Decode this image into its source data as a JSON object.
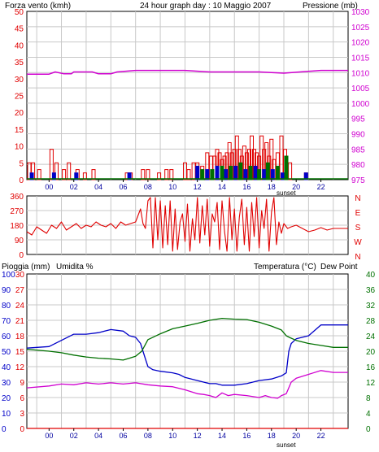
{
  "header": {
    "left_label": "Forza vento (kmh)",
    "title": "24 hour graph day : 10 Maggio 2007",
    "right_label": "Pressione (mb)"
  },
  "colors": {
    "red": "#e00000",
    "blue": "#0000c8",
    "green": "#007000",
    "magenta": "#d000d0",
    "gust_red": "#e00000",
    "grid": "#c8c8c8",
    "border": "#000000"
  },
  "time_ticks": [
    "00",
    "02",
    "04",
    "06",
    "08",
    "10",
    "12",
    "14",
    "16",
    "18",
    "20",
    "22"
  ],
  "sunset_label": "sunset",
  "chart_data": [
    {
      "type": "bar",
      "panel": "wind",
      "x_unit": "hours",
      "xlim": [
        -1.8,
        24.2
      ],
      "ylim_left": [
        0,
        50
      ],
      "ylim_right": [
        975,
        1030
      ],
      "y_ticks_left": [
        0,
        5,
        10,
        15,
        20,
        25,
        30,
        35,
        40,
        45,
        50
      ],
      "y_ticks_right": [
        975,
        980,
        985,
        990,
        995,
        1000,
        1005,
        1010,
        1015,
        1020,
        1025,
        1030
      ],
      "series": [
        {
          "name": "Forza vento (kmh)",
          "role": "gust",
          "x": [
            -1.6,
            -1.3,
            -0.8,
            0.2,
            0.6,
            1.2,
            1.6,
            2.3,
            2.9,
            3.6,
            6.3,
            6.6,
            7.6,
            8.0,
            8.9,
            9.5,
            9.9,
            11.0,
            11.3,
            11.7,
            12.0,
            12.4,
            12.8,
            13.1,
            13.4,
            13.6,
            13.8,
            14.0,
            14.2,
            14.4,
            14.6,
            14.8,
            15.0,
            15.2,
            15.4,
            15.6,
            15.8,
            16.0,
            16.2,
            16.4,
            16.6,
            16.8,
            17.0,
            17.2,
            17.4,
            17.6,
            17.8,
            18.0,
            18.2,
            18.5,
            18.8,
            19.1,
            19.5,
            20.8
          ],
          "values": [
            5,
            5,
            3,
            9,
            5,
            3,
            5,
            3,
            2,
            3,
            2,
            2,
            3,
            3,
            2,
            3,
            3,
            5,
            3,
            5,
            5,
            4,
            8,
            7,
            7,
            9,
            8,
            6,
            7,
            8,
            11,
            8,
            9,
            13,
            9,
            7,
            10,
            8,
            9,
            13,
            9,
            8,
            7,
            13,
            9,
            11,
            7,
            12,
            6,
            8,
            13,
            9,
            5,
            2
          ]
        },
        {
          "name": "mean-blue",
          "role": "mean",
          "x": [
            -1.4,
            0.4,
            2.2,
            6.5,
            12.0,
            12.8,
            13.6,
            14.3,
            15.1,
            15.9,
            16.7,
            17.4,
            18.1,
            18.9,
            20.8
          ],
          "values": [
            2,
            2,
            2,
            2,
            4,
            3,
            4,
            3,
            4,
            3,
            4,
            3,
            3,
            2,
            2
          ]
        },
        {
          "name": "mean-green",
          "role": "mean",
          "x": [
            12.4,
            13.2,
            14.0,
            14.7,
            15.5,
            16.3,
            17.0,
            17.7,
            18.5,
            19.2
          ],
          "values": [
            3,
            3,
            4,
            4,
            5,
            4,
            3,
            5,
            4,
            7
          ]
        },
        {
          "name": "Pressione (mb)",
          "role": "pressure",
          "x": [
            -1.8,
            0.0,
            0.5,
            1.2,
            1.8,
            2.0,
            3.5,
            4.0,
            5.0,
            5.5,
            7.0,
            11.0,
            13.0,
            17.0,
            19.0,
            22.0,
            24.2
          ],
          "values": [
            1009.5,
            1009.5,
            1010.2,
            1009.6,
            1009.6,
            1010.2,
            1010.2,
            1009.6,
            1009.6,
            1010.2,
            1010.7,
            1010.7,
            1010.2,
            1010.2,
            1009.8,
            1010.7,
            1010.7
          ]
        }
      ]
    },
    {
      "type": "line",
      "panel": "wind_direction",
      "x_unit": "hours",
      "xlim": [
        -1.8,
        24.2
      ],
      "ylim": [
        0,
        360
      ],
      "y_ticks_left": [
        0,
        90,
        180,
        270,
        360
      ],
      "y_ticks_right_labels": [
        "N",
        "W",
        "S",
        "E",
        "N"
      ],
      "series": [
        {
          "name": "direction",
          "x": [
            -1.8,
            -1.4,
            -1.0,
            -0.6,
            -0.2,
            0.2,
            0.6,
            1.0,
            1.4,
            1.8,
            2.2,
            2.6,
            3.0,
            3.4,
            3.8,
            4.2,
            4.6,
            5.0,
            5.4,
            5.8,
            6.2,
            6.6,
            7.0,
            7.4,
            7.6,
            7.8,
            8.0,
            8.2,
            8.4,
            8.6,
            8.8,
            9.0,
            9.2,
            9.4,
            9.6,
            9.8,
            10.0,
            10.2,
            10.4,
            10.6,
            10.8,
            11.0,
            11.2,
            11.4,
            11.6,
            11.8,
            12.0,
            12.2,
            12.4,
            12.6,
            12.8,
            13.0,
            13.2,
            13.4,
            13.6,
            13.8,
            14.0,
            14.2,
            14.4,
            14.6,
            14.8,
            15.0,
            15.2,
            15.4,
            15.6,
            15.8,
            16.0,
            16.2,
            16.4,
            16.6,
            16.8,
            17.0,
            17.2,
            17.4,
            17.6,
            17.8,
            18.0,
            18.2,
            18.4,
            18.6,
            18.8,
            19.0,
            19.3,
            19.6,
            20.0,
            20.5,
            21.0,
            21.5,
            22.0,
            22.5,
            23.0,
            23.5,
            24.2
          ],
          "values": [
            140,
            120,
            170,
            150,
            130,
            180,
            160,
            200,
            150,
            170,
            190,
            160,
            180,
            170,
            200,
            180,
            170,
            190,
            160,
            200,
            180,
            190,
            200,
            280,
            190,
            160,
            330,
            350,
            40,
            350,
            90,
            330,
            40,
            300,
            60,
            330,
            20,
            280,
            30,
            200,
            250,
            80,
            310,
            20,
            220,
            90,
            350,
            70,
            300,
            120,
            340,
            50,
            250,
            200,
            320,
            30,
            330,
            140,
            20,
            350,
            90,
            280,
            20,
            230,
            340,
            60,
            290,
            20,
            320,
            110,
            350,
            40,
            270,
            160,
            340,
            20,
            260,
            350,
            60,
            200,
            130,
            190,
            160,
            170,
            180,
            160,
            140,
            150,
            165,
            150,
            160,
            160,
            160
          ]
        }
      ]
    },
    {
      "type": "line",
      "panel": "temp_humidity",
      "x_unit": "hours",
      "xlim": [
        -1.8,
        24.2
      ],
      "left_label": "Pioggia (mm)",
      "center_label": "Umidita %",
      "right_label": "Temperatura (°C)",
      "right_label2": "Dew Point",
      "ylim_left_rain": [
        0,
        100
      ],
      "y_ticks_rain": [
        0,
        10,
        20,
        30,
        40,
        50,
        60,
        70,
        80,
        90,
        100
      ],
      "ylim_humidity": [
        0,
        30
      ],
      "y_ticks_humidity": [
        0,
        3,
        6,
        9,
        12,
        15,
        18,
        21,
        24,
        27,
        30
      ],
      "ylim_temp": [
        0,
        40
      ],
      "y_ticks_temp": [
        0,
        4,
        8,
        12,
        16,
        20,
        24,
        28,
        32,
        36,
        40
      ],
      "series": [
        {
          "name": "Umidita %",
          "scale": "rain",
          "x": [
            -1.8,
            0.0,
            1.0,
            2.0,
            3.0,
            4.0,
            5.0,
            6.0,
            6.5,
            7.0,
            7.4,
            7.6,
            7.8,
            8.0,
            8.4,
            9.0,
            10.0,
            10.5,
            11.0,
            12.0,
            13.0,
            13.5,
            14.0,
            15.0,
            16.0,
            17.0,
            18.0,
            18.8,
            19.2,
            19.4,
            19.6,
            20.0,
            21.0,
            22.0,
            23.0,
            24.2
          ],
          "values": [
            52,
            53,
            57,
            61,
            61,
            62,
            64,
            63,
            60,
            59,
            55,
            50,
            45,
            40,
            38,
            37,
            36,
            35,
            33,
            31,
            29,
            29,
            28,
            28,
            29,
            31,
            32,
            34,
            36,
            50,
            55,
            58,
            60,
            67,
            67,
            67
          ]
        },
        {
          "name": "Temperatura (°C)",
          "scale": "temp",
          "x": [
            -1.8,
            0.0,
            1.0,
            2.0,
            3.0,
            4.0,
            5.0,
            6.0,
            6.5,
            7.0,
            7.5,
            8.0,
            9.0,
            10.0,
            11.0,
            12.0,
            13.0,
            14.0,
            15.0,
            16.0,
            17.0,
            18.0,
            18.8,
            19.2,
            19.5,
            20.0,
            21.0,
            22.0,
            23.0,
            24.2
          ],
          "values": [
            20.5,
            20.0,
            19.6,
            19.0,
            18.5,
            18.2,
            18.0,
            17.7,
            18.2,
            18.7,
            20.0,
            23.0,
            24.5,
            25.8,
            26.5,
            27.2,
            28.0,
            28.5,
            28.3,
            28.2,
            27.5,
            26.5,
            25.5,
            24.0,
            23.5,
            22.8,
            22.0,
            21.5,
            21.0,
            21.0
          ]
        },
        {
          "name": "Dew Point",
          "scale": "temp",
          "x": [
            -1.8,
            0.0,
            1.0,
            2.0,
            3.0,
            4.0,
            5.0,
            6.0,
            7.0,
            8.0,
            9.0,
            10.0,
            11.0,
            12.0,
            12.5,
            13.0,
            13.5,
            14.0,
            14.5,
            15.0,
            16.0,
            17.0,
            17.5,
            18.0,
            18.5,
            18.8,
            19.2,
            19.6,
            20.0,
            21.0,
            22.0,
            23.0,
            24.2
          ],
          "values": [
            10.5,
            11.0,
            11.5,
            11.3,
            11.8,
            11.5,
            11.8,
            11.5,
            11.8,
            11.3,
            11.0,
            10.8,
            10.0,
            9.0,
            8.8,
            8.5,
            8.0,
            9.2,
            8.5,
            8.8,
            8.5,
            8.0,
            8.5,
            8.0,
            7.8,
            8.5,
            9.0,
            12.0,
            13.0,
            14.0,
            15.0,
            14.5,
            14.5
          ]
        },
        {
          "name": "Pioggia (mm)",
          "scale": "rain",
          "x": [
            -1.8,
            24.2
          ],
          "values": [
            0,
            0
          ]
        }
      ]
    }
  ]
}
